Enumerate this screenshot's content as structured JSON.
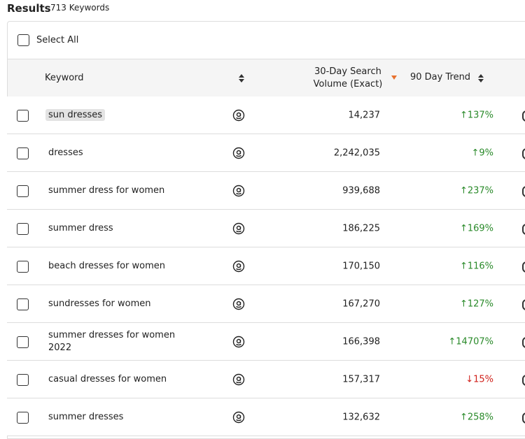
{
  "header": {
    "title": "Results",
    "count": "713 Keywords"
  },
  "select_all": "Select All",
  "table": {
    "columns": [
      "Keyword",
      "30-Day Search Volume (Exact)",
      "90 Day Trend"
    ],
    "rows": [
      [
        "sun dresses",
        "14,237",
        "↑137%"
      ],
      [
        "dresses",
        "2,242,035",
        "↑9%"
      ],
      [
        "summer dress for women",
        "939,688",
        "↑237%"
      ],
      [
        "summer dress",
        "186,225",
        "↑169%"
      ],
      [
        "beach dresses for women",
        "170,150",
        "↑116%"
      ],
      [
        "sundresses for women",
        "167,270",
        "↑127%"
      ],
      [
        "summer dresses for women 2022",
        "166,398",
        "↑14707%"
      ],
      [
        "casual dresses for women",
        "157,317",
        "↓15%"
      ],
      [
        "summer dresses",
        "132,632",
        "↑258%"
      ]
    ]
  }
}
